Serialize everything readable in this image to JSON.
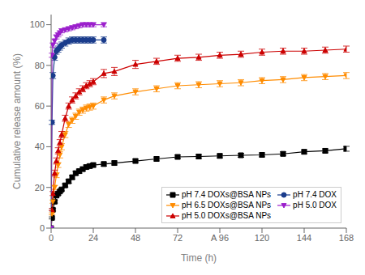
{
  "chart_data": {
    "type": "line",
    "xlabel": "Time (h)",
    "ylabel": "Cumulative release amount (%)",
    "xlim": [
      0,
      168
    ],
    "ylim": [
      0,
      105
    ],
    "xticks": [
      0,
      24,
      48,
      72,
      {
        "value": 96,
        "label": "A 96"
      },
      120,
      144,
      168
    ],
    "yticks": [
      0,
      20,
      40,
      60,
      80,
      100
    ],
    "legend": "lower right",
    "grid": false,
    "series": [
      {
        "name": "pH 7.4 DOXs@BSA NPs",
        "color": "#000000",
        "marker": "square",
        "x": [
          0,
          0.5,
          1,
          2,
          3,
          4,
          5,
          6,
          8,
          10,
          12,
          14,
          16,
          18,
          20,
          22,
          24,
          30,
          36,
          48,
          60,
          72,
          84,
          96,
          108,
          120,
          132,
          144,
          156,
          168
        ],
        "values": [
          0,
          5,
          9,
          13,
          16,
          17,
          18,
          19,
          21,
          23,
          25,
          27,
          28,
          29,
          30,
          30.5,
          31,
          31.5,
          32,
          33,
          34,
          35,
          35.2,
          35.5,
          35.8,
          36,
          36.5,
          37.5,
          38,
          39
        ],
        "yerr": [
          0,
          0.5,
          0.6,
          0.7,
          0.8,
          0.8,
          0.7,
          0.7,
          0.8,
          0.9,
          1.0,
          1.0,
          1.0,
          1.0,
          1.0,
          1.0,
          1.0,
          1.0,
          1.0,
          1.0,
          1.0,
          1.0,
          1.0,
          1.0,
          1.0,
          1.0,
          1.0,
          1.0,
          1.0,
          1.2
        ]
      },
      {
        "name": "pH 6.5 DOXs@BSA NPs",
        "color": "#FF8C00",
        "marker": "triangle-down",
        "x": [
          0,
          0.5,
          1,
          2,
          3,
          4,
          5,
          6,
          8,
          10,
          12,
          14,
          16,
          18,
          20,
          22,
          24,
          30,
          36,
          48,
          60,
          72,
          84,
          96,
          108,
          120,
          132,
          144,
          156,
          168
        ],
        "values": [
          0,
          7,
          13,
          20,
          26,
          31,
          36,
          40,
          46,
          51,
          53,
          55,
          57,
          58,
          59,
          59.5,
          60,
          63,
          65,
          67,
          68.5,
          70,
          70.5,
          71,
          71.5,
          72.5,
          73,
          74,
          74.5,
          75
        ],
        "yerr": [
          0,
          0.5,
          0.8,
          1.0,
          1.2,
          1.2,
          1.5,
          1.5,
          1.5,
          1.5,
          1.5,
          1.5,
          1.5,
          1.5,
          1.5,
          1.5,
          1.5,
          1.5,
          1.5,
          1.5,
          1.5,
          1.5,
          1.5,
          1.5,
          1.5,
          1.5,
          1.5,
          1.5,
          1.5,
          1.5
        ]
      },
      {
        "name": "pH 5.0 DOXs@BSA NPs",
        "color": "#CC0000",
        "marker": "triangle-up",
        "x": [
          0,
          0.5,
          1,
          2,
          3,
          4,
          5,
          6,
          8,
          10,
          12,
          14,
          16,
          18,
          20,
          22,
          24,
          30,
          36,
          48,
          60,
          72,
          84,
          96,
          108,
          120,
          132,
          144,
          156,
          168
        ],
        "values": [
          0,
          9,
          17,
          27,
          33,
          38,
          42,
          46,
          54,
          60,
          63,
          65,
          67,
          68.5,
          70,
          71,
          72,
          76,
          77,
          80.5,
          82,
          83.5,
          84,
          85,
          85.5,
          86.5,
          87,
          87,
          87.5,
          88
        ],
        "yerr": [
          0,
          0.5,
          1.0,
          1.5,
          1.5,
          1.5,
          1.5,
          1.5,
          1.5,
          1.5,
          1.5,
          1.5,
          1.5,
          1.5,
          1.5,
          1.5,
          1.5,
          2.0,
          2.0,
          2.0,
          1.5,
          1.5,
          1.5,
          1.5,
          1.5,
          1.5,
          1.5,
          1.5,
          1.5,
          1.5
        ]
      },
      {
        "name": "pH 7.4 DOX",
        "color": "#1A3C8C",
        "marker": "circle",
        "x": [
          0,
          0.5,
          1,
          2,
          3,
          4,
          5,
          6,
          8,
          10,
          12,
          14,
          16,
          18,
          20,
          22,
          24,
          30
        ],
        "values": [
          0,
          52,
          75,
          84,
          87,
          88,
          89,
          90,
          91,
          92,
          92.5,
          92.5,
          92.5,
          92.5,
          92.5,
          92.5,
          92.5,
          92.5
        ],
        "yerr": [
          0,
          1.0,
          1.5,
          1.5,
          1.5,
          1.5,
          1.5,
          1.5,
          1.5,
          1.5,
          1.5,
          1.5,
          1.5,
          1.5,
          1.5,
          1.5,
          1.5,
          1.5
        ]
      },
      {
        "name": "pH 5.0 DOX",
        "color": "#9B1FCC",
        "marker": "triangle-down",
        "x": [
          0,
          0.5,
          1,
          2,
          3,
          4,
          5,
          6,
          8,
          10,
          12,
          14,
          16,
          18,
          20,
          22,
          24,
          30
        ],
        "values": [
          0,
          85,
          90,
          92,
          94,
          95,
          96,
          97,
          97.5,
          98,
          98.5,
          99,
          99.5,
          100,
          100,
          100,
          100,
          100
        ],
        "yerr": [
          0,
          1.0,
          1.0,
          1.0,
          1.0,
          1.0,
          1.0,
          1.0,
          1.0,
          1.0,
          1.0,
          1.0,
          1.0,
          1.0,
          1.0,
          1.0,
          1.0,
          1.0
        ]
      }
    ]
  }
}
